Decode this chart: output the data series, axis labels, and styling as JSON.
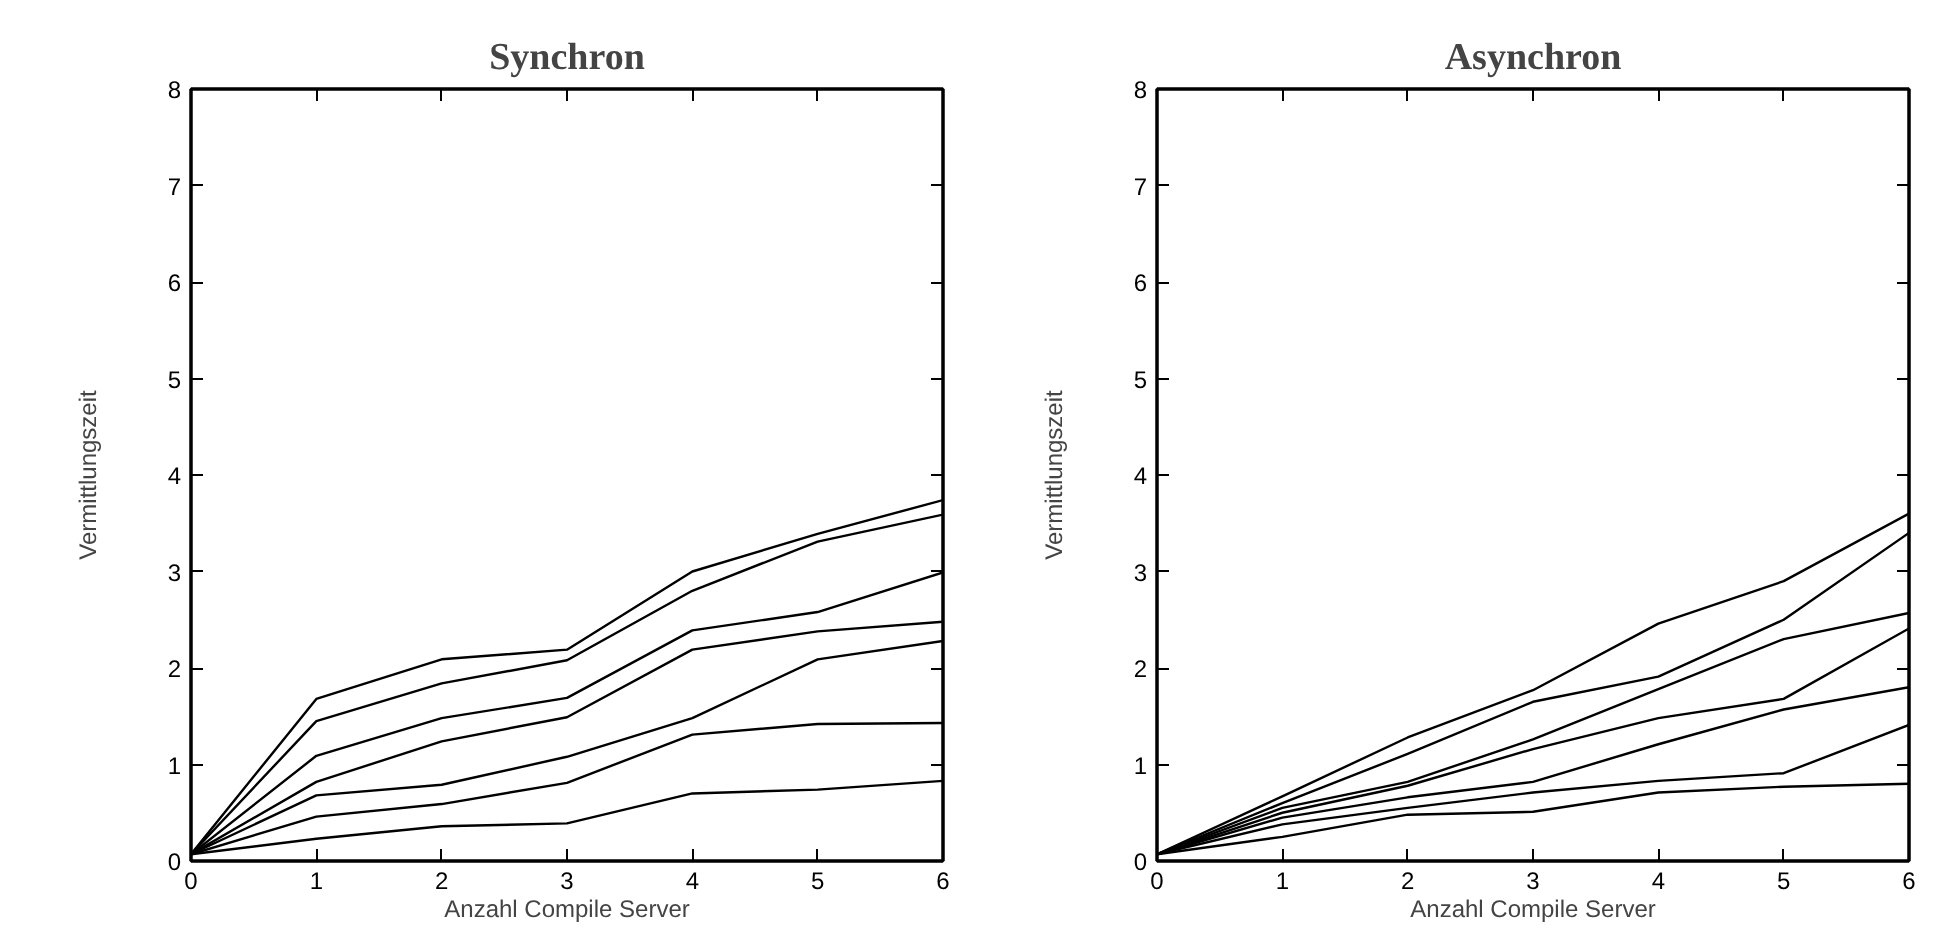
{
  "chart_data": [
    {
      "type": "line",
      "title": "Synchron",
      "xlabel": "Anzahl Compile Server",
      "ylabel": "Vermittlungszeit",
      "x": [
        0,
        1,
        2,
        3,
        4,
        5,
        6
      ],
      "xlim": [
        0,
        6
      ],
      "ylim": [
        0,
        8
      ],
      "xticks": [
        0,
        1,
        2,
        3,
        4,
        5,
        6
      ],
      "yticks": [
        0,
        1,
        2,
        3,
        4,
        5,
        6,
        7,
        8
      ],
      "series": [
        {
          "color": "#000000",
          "values": [
            0.07,
            1.68,
            2.09,
            2.19,
            3.0,
            3.39,
            3.74
          ]
        },
        {
          "color": "#000000",
          "values": [
            0.07,
            1.45,
            1.84,
            2.08,
            2.8,
            3.31,
            3.59
          ]
        },
        {
          "color": "#000000",
          "values": [
            0.07,
            1.09,
            1.48,
            1.69,
            2.39,
            2.58,
            2.99
          ]
        },
        {
          "color": "#000000",
          "values": [
            0.07,
            0.82,
            1.24,
            1.49,
            2.19,
            2.38,
            2.48
          ]
        },
        {
          "color": "#000000",
          "values": [
            0.07,
            0.68,
            0.79,
            1.08,
            1.48,
            2.09,
            2.28
          ]
        },
        {
          "color": "#000000",
          "values": [
            0.07,
            0.46,
            0.59,
            0.81,
            1.31,
            1.42,
            1.43
          ]
        },
        {
          "color": "#000000",
          "values": [
            0.07,
            0.23,
            0.36,
            0.39,
            0.7,
            0.74,
            0.83
          ]
        }
      ]
    },
    {
      "type": "line",
      "title": "Asynchron",
      "xlabel": "Anzahl Compile Server",
      "ylabel": "Vermittlungszeit",
      "x": [
        0,
        1,
        2,
        3,
        4,
        5,
        6
      ],
      "xlim": [
        0,
        6
      ],
      "ylim": [
        0,
        8
      ],
      "xticks": [
        0,
        1,
        2,
        3,
        4,
        5,
        6
      ],
      "yticks": [
        0,
        1,
        2,
        3,
        4,
        5,
        6,
        7,
        8
      ],
      "series": [
        {
          "color": "#000000",
          "values": [
            0.07,
            0.67,
            1.28,
            1.77,
            2.46,
            2.9,
            3.6
          ]
        },
        {
          "color": "#000000",
          "values": [
            0.07,
            0.6,
            1.11,
            1.65,
            1.91,
            2.5,
            3.4
          ]
        },
        {
          "color": "#000000",
          "values": [
            0.07,
            0.55,
            0.82,
            1.26,
            1.78,
            2.3,
            2.57
          ]
        },
        {
          "color": "#000000",
          "values": [
            0.07,
            0.5,
            0.78,
            1.16,
            1.48,
            1.68,
            2.41
          ]
        },
        {
          "color": "#000000",
          "values": [
            0.07,
            0.45,
            0.66,
            0.82,
            1.21,
            1.57,
            1.8
          ]
        },
        {
          "color": "#000000",
          "values": [
            0.07,
            0.38,
            0.55,
            0.71,
            0.83,
            0.91,
            1.41
          ]
        },
        {
          "color": "#000000",
          "values": [
            0.07,
            0.25,
            0.48,
            0.51,
            0.71,
            0.77,
            0.8
          ]
        }
      ]
    }
  ]
}
